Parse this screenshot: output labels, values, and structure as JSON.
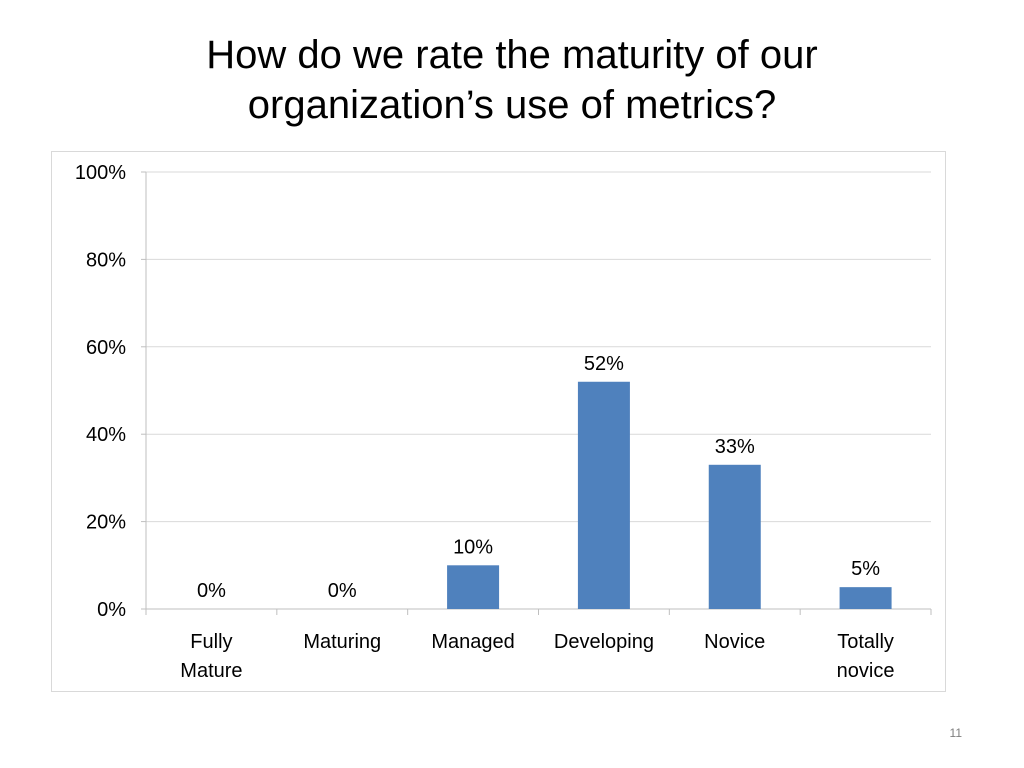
{
  "slide": {
    "title_lines": [
      "How do we rate the maturity of our",
      "organization’s use of metrics?"
    ],
    "slide_number": "11"
  },
  "chart_data": {
    "type": "bar",
    "categories": [
      [
        "Fully",
        "Mature"
      ],
      [
        "Maturing"
      ],
      [
        "Managed"
      ],
      [
        "Developing"
      ],
      [
        "Novice"
      ],
      [
        "Totally",
        "novice"
      ]
    ],
    "series": [
      {
        "values": [
          0,
          0,
          10,
          52,
          33,
          5
        ],
        "data_labels": [
          "0%",
          "0%",
          "10%",
          "52%",
          "33%",
          "5%"
        ]
      }
    ],
    "ylim": [
      0,
      100
    ],
    "y_ticks": [
      0,
      20,
      40,
      60,
      80,
      100
    ],
    "y_tick_labels": [
      "0%",
      "20%",
      "40%",
      "60%",
      "80%",
      "100%"
    ],
    "grid": true,
    "legend": "none",
    "bar_color": "#4f81bd",
    "gridline_color": "#d9d9d9"
  }
}
